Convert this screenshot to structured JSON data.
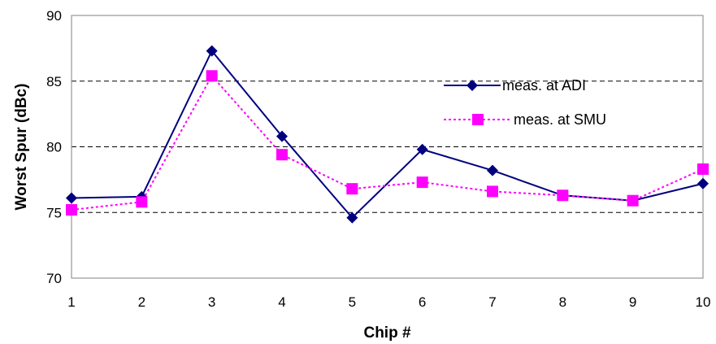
{
  "chart_data": {
    "type": "line",
    "title": "",
    "xlabel": "Chip #",
    "ylabel": "Worst Spur (dBc)",
    "x": [
      1,
      2,
      3,
      4,
      5,
      6,
      7,
      8,
      9,
      10
    ],
    "ylim": [
      70,
      90
    ],
    "yticks": [
      70,
      75,
      80,
      85,
      90
    ],
    "grid": "horizontal dashed",
    "legend": "top-right",
    "series": [
      {
        "name": "meas. at ADI",
        "values": [
          76.1,
          76.2,
          87.3,
          80.8,
          74.6,
          79.8,
          78.2,
          76.3,
          75.9,
          77.2
        ],
        "color": "#00007f",
        "line": "solid",
        "marker": "diamond"
      },
      {
        "name": "meas. at SMU",
        "values": [
          75.2,
          75.8,
          85.4,
          79.4,
          76.8,
          77.3,
          76.6,
          76.3,
          75.9,
          78.3
        ],
        "color": "#ff00ff",
        "line": "dotted",
        "marker": "square"
      }
    ]
  }
}
